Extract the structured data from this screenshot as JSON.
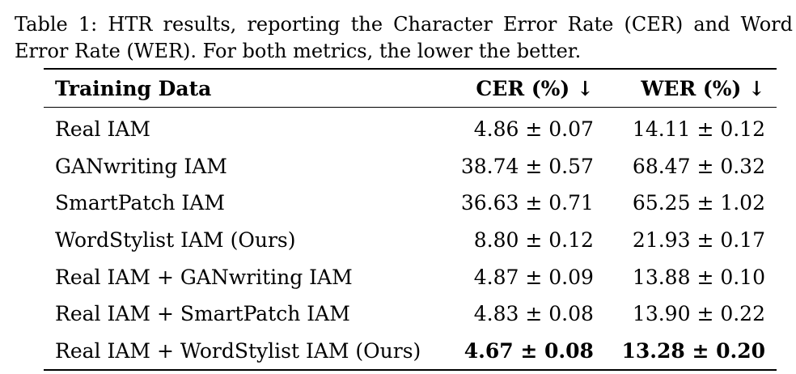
{
  "caption": {
    "text": "Table 1: HTR results, reporting the Character Error Rate (CER) and Word Error Rate (WER). For both metrics, the lower the better."
  },
  "table": {
    "headers": [
      "Training Data",
      "CER (%) ↓",
      "WER (%) ↓"
    ],
    "rows": [
      {
        "name": "Real IAM",
        "cer": "4.86 ± 0.07",
        "wer": "14.11 ± 0.12"
      },
      {
        "name": "GANwriting IAM",
        "cer": "38.74 ± 0.57",
        "wer": "68.47 ± 0.32"
      },
      {
        "name": "SmartPatch IAM",
        "cer": "36.63 ± 0.71",
        "wer": "65.25 ± 1.02"
      },
      {
        "name": "WordStylist IAM (Ours)",
        "cer": "8.80 ± 0.12",
        "wer": "21.93 ± 0.17"
      },
      {
        "name": "Real IAM + GANwriting IAM",
        "cer": "4.87 ± 0.09",
        "wer": "13.88 ± 0.10"
      },
      {
        "name": "Real IAM + SmartPatch IAM",
        "cer": "4.83 ± 0.08",
        "wer": "13.90 ± 0.22"
      },
      {
        "name": "Real IAM + WordStylist IAM (Ours)",
        "cer": "4.67 ± 0.08",
        "wer": "13.28 ± 0.20"
      }
    ]
  }
}
